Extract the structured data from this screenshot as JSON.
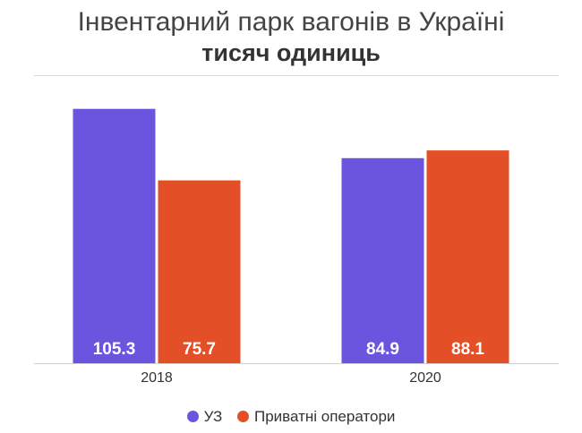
{
  "chart_data": {
    "type": "bar",
    "title": "Інвентарний парк вагонів в Україні",
    "subtitle": "тисяч одиниць",
    "categories": [
      "2018",
      "2020"
    ],
    "series": [
      {
        "name": "УЗ",
        "color": "#6c55de",
        "values": [
          105.3,
          84.9
        ]
      },
      {
        "name": "Приватні оператори",
        "color": "#e35027",
        "values": [
          75.7,
          88.1
        ]
      }
    ],
    "ylim": [
      0,
      110
    ],
    "grid": false,
    "legend": "bottom",
    "data_labels": "inside-bottom",
    "data_label_color": "#ffffff"
  }
}
